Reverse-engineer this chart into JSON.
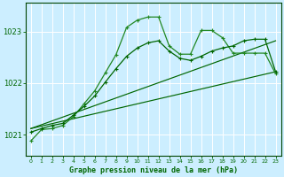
{
  "title": "Graphe pression niveau de la mer (hPa)",
  "bg_color": "#cceeff",
  "grid_color": "#ffffff",
  "line_color_dark": "#006600",
  "line_color_mid": "#228822",
  "xlim": [
    -0.5,
    23.5
  ],
  "ylim": [
    1020.6,
    1023.55
  ],
  "yticks": [
    1021,
    1022,
    1023
  ],
  "xticks": [
    0,
    1,
    2,
    3,
    4,
    5,
    6,
    7,
    8,
    9,
    10,
    11,
    12,
    13,
    14,
    15,
    16,
    17,
    18,
    19,
    20,
    21,
    22,
    23
  ],
  "series1_x": [
    0,
    1,
    2,
    3,
    4,
    5,
    6,
    7,
    8,
    9,
    10,
    11,
    12,
    13,
    14,
    15,
    16,
    17,
    18,
    19,
    20,
    21,
    22,
    23
  ],
  "series1_y": [
    1020.88,
    1021.1,
    1021.12,
    1021.18,
    1021.35,
    1021.6,
    1021.85,
    1022.2,
    1022.55,
    1023.08,
    1023.22,
    1023.28,
    1023.28,
    1022.72,
    1022.56,
    1022.56,
    1023.02,
    1023.02,
    1022.88,
    1022.58,
    1022.58,
    1022.58,
    1022.58,
    1022.18
  ],
  "series2_x": [
    0,
    1,
    2,
    3,
    4,
    5,
    6,
    7,
    8,
    9,
    10,
    11,
    12,
    13,
    14,
    15,
    16,
    17,
    18,
    19,
    20,
    21,
    22,
    23
  ],
  "series2_y": [
    1021.05,
    1021.12,
    1021.18,
    1021.22,
    1021.38,
    1021.55,
    1021.75,
    1022.02,
    1022.28,
    1022.52,
    1022.68,
    1022.78,
    1022.82,
    1022.62,
    1022.48,
    1022.44,
    1022.52,
    1022.62,
    1022.68,
    1022.72,
    1022.82,
    1022.85,
    1022.85,
    1022.22
  ],
  "series3_x": [
    0,
    23
  ],
  "series3_y": [
    1021.12,
    1022.82
  ],
  "series4_x": [
    0,
    23
  ],
  "series4_y": [
    1021.12,
    1022.22
  ]
}
